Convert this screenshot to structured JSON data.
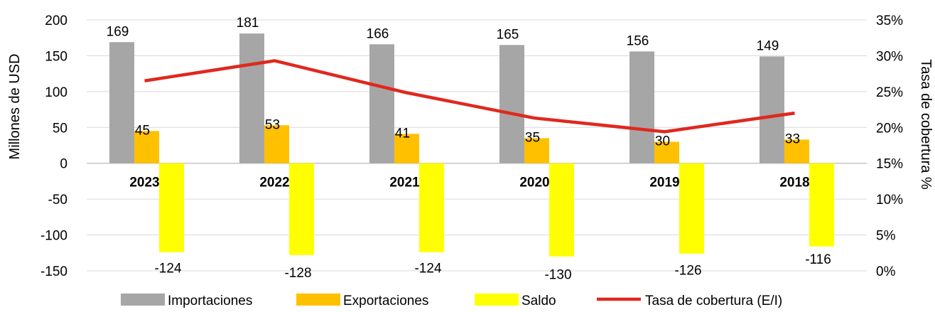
{
  "chart_data": {
    "type": "bar",
    "categories": [
      "2023",
      "2022",
      "2021",
      "2020",
      "2019",
      "2018"
    ],
    "series": [
      {
        "name": "Importaciones",
        "values": [
          169,
          181,
          166,
          165,
          156,
          149
        ],
        "color": "#a6a6a6",
        "axis": "left",
        "kind": "bar"
      },
      {
        "name": "Exportaciones",
        "values": [
          45,
          53,
          41,
          35,
          30,
          33
        ],
        "color": "#ffc000",
        "axis": "left",
        "kind": "bar"
      },
      {
        "name": "Saldo",
        "values": [
          -124,
          -128,
          -124,
          -130,
          -126,
          -116
        ],
        "color": "#ffff00",
        "axis": "left",
        "kind": "bar"
      },
      {
        "name": "Tasa de cobertura (E/I)",
        "values": [
          26.5,
          29.3,
          24.9,
          21.3,
          19.4,
          22.0
        ],
        "color": "#e0281e",
        "axis": "right",
        "kind": "line"
      }
    ],
    "title": "",
    "ylabel": "Millones de USD",
    "y2label": "Tasa de cobertura %",
    "ylim": [
      -150,
      200
    ],
    "yticks": [
      "200",
      "150",
      "100",
      "50",
      "0",
      "-50",
      "-100",
      "-150"
    ],
    "y2lim": [
      0,
      35
    ],
    "y2ticks": [
      "35%",
      "30%",
      "25%",
      "20%",
      "15%",
      "10%",
      "5%",
      "0%"
    ],
    "grid": true,
    "legend_position": "bottom"
  }
}
